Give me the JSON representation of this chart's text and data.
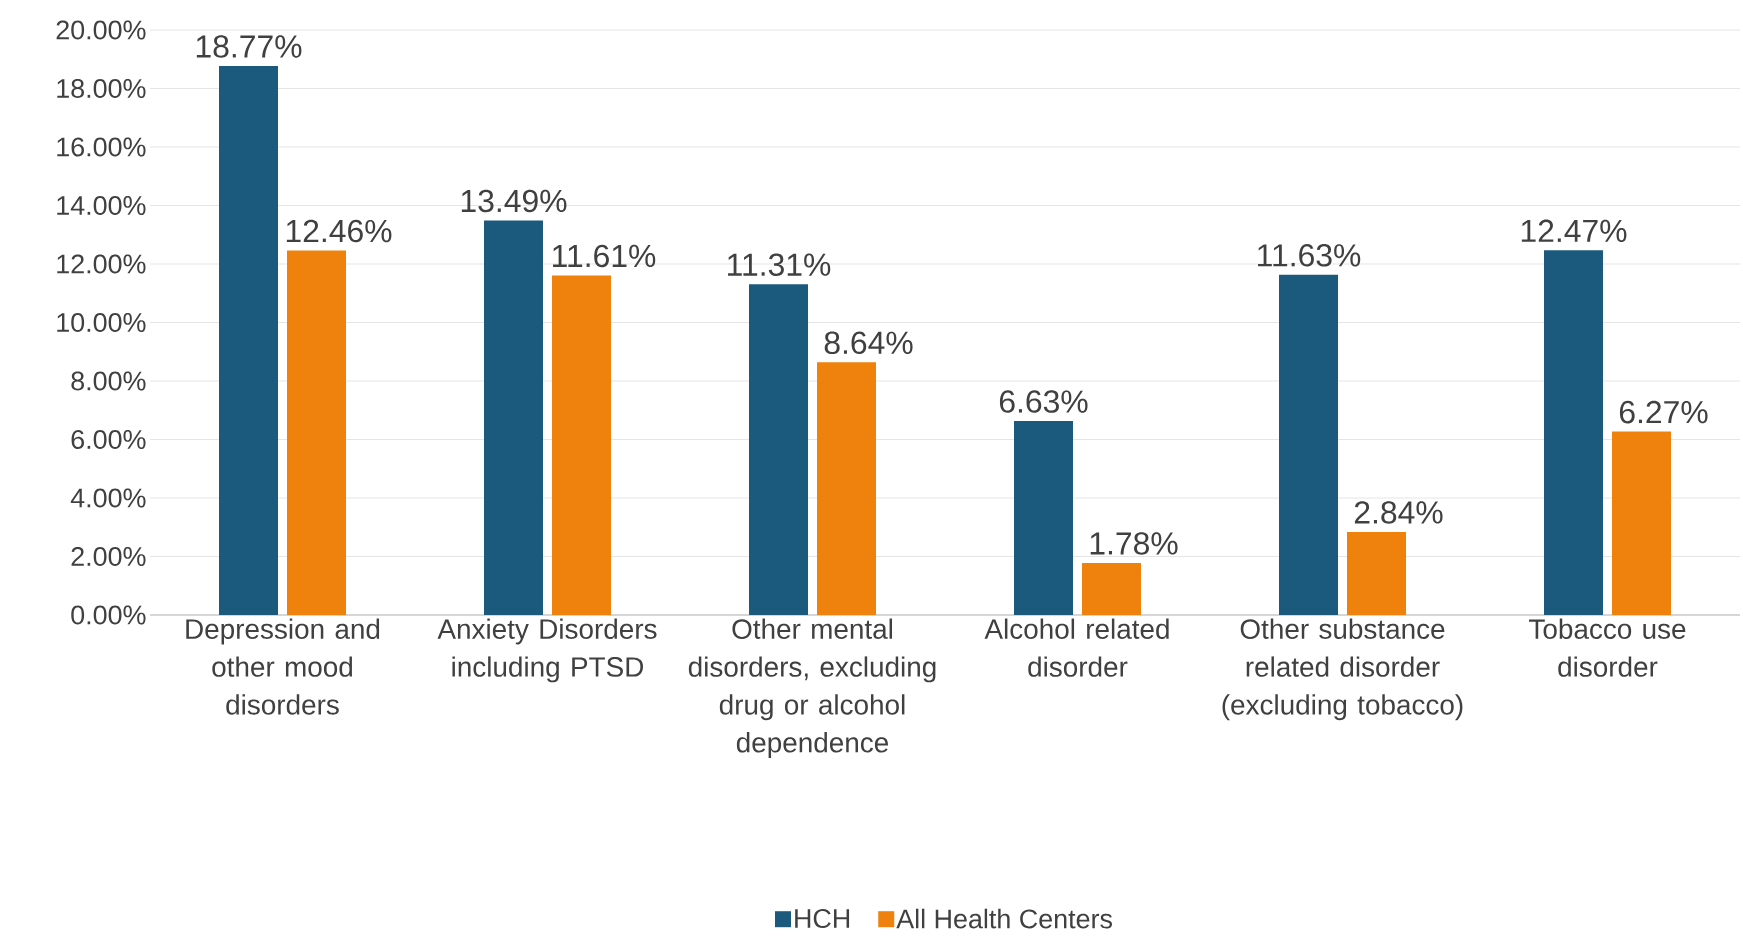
{
  "chart_data": {
    "type": "bar",
    "categories": [
      "Depression and other mood disorders",
      "Anxiety Disorders including PTSD",
      "Other mental disorders, excluding drug or alcohol dependence",
      "Alcohol related disorder",
      "Other substance related disorder (excluding tobacco)",
      "Tobacco use disorder"
    ],
    "series": [
      {
        "name": "HCH",
        "color": "#1c5a7d",
        "values": [
          18.77,
          13.49,
          11.31,
          6.63,
          11.63,
          12.47
        ],
        "value_labels": [
          "18.77%",
          "13.49%",
          "11.31%",
          "6.63%",
          "11.63%",
          "12.47%"
        ]
      },
      {
        "name": "All Health Centers",
        "color": "#ef820d",
        "values": [
          12.46,
          11.61,
          8.64,
          1.78,
          2.84,
          6.27
        ],
        "value_labels": [
          "12.46%",
          "11.61%",
          "8.64%",
          "1.78%",
          "2.84%",
          "6.27%"
        ]
      }
    ],
    "ylim": [
      0,
      20
    ],
    "yticks": [
      {
        "value": 0,
        "label": "0.00%"
      },
      {
        "value": 2,
        "label": "2.00%"
      },
      {
        "value": 4,
        "label": "4.00%"
      },
      {
        "value": 6,
        "label": "6.00%"
      },
      {
        "value": 8,
        "label": "8.00%"
      },
      {
        "value": 10,
        "label": "10.00%"
      },
      {
        "value": 12,
        "label": "12.00%"
      },
      {
        "value": 14,
        "label": "14.00%"
      },
      {
        "value": 16,
        "label": "16.00%"
      },
      {
        "value": 18,
        "label": "18.00%"
      },
      {
        "value": 20,
        "label": "20.00%"
      }
    ],
    "grid": "y",
    "legend": "bottom"
  }
}
